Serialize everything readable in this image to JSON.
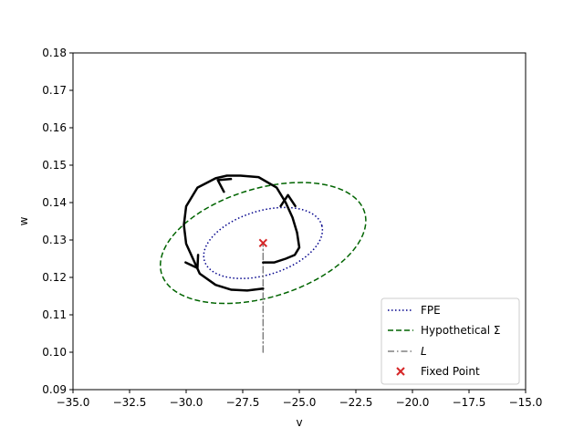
{
  "chart_data": {
    "type": "line",
    "xlabel": "v",
    "ylabel": "w",
    "xlim": [
      -35.0,
      -15.0
    ],
    "ylim": [
      0.09,
      0.18
    ],
    "x_ticks": [
      "−35.0",
      "−32.5",
      "−30.0",
      "−27.5",
      "−25.0",
      "−22.5",
      "−20.0",
      "−17.5",
      "−15.0"
    ],
    "y_ticks": [
      "0.09",
      "0.10",
      "0.11",
      "0.12",
      "0.13",
      "0.14",
      "0.15",
      "0.16",
      "0.17",
      "0.18"
    ],
    "grid": false,
    "legend_position": "lower-right",
    "series": [
      {
        "name": "FPE",
        "kind": "ellipse",
        "style": "dotted",
        "color": "#00008b",
        "center": [
          -26.6,
          0.1292
        ],
        "semi_axes_points": [
          [
            -24.0,
            0.1338
          ],
          [
            -26.95,
            0.1375
          ]
        ]
      },
      {
        "name": "Hypothetical Σ",
        "kind": "ellipse",
        "style": "dashed",
        "color": "#006400",
        "center": [
          -26.6,
          0.1292
        ],
        "semi_axes_points": [
          [
            -22.1,
            0.1371
          ],
          [
            -27.2,
            0.1433
          ]
        ]
      },
      {
        "name": "L",
        "kind": "line",
        "style": "dashdot",
        "color": "#808080",
        "x": [
          -26.6,
          -26.6
        ],
        "y": [
          0.1,
          0.1292
        ]
      },
      {
        "name": "Fixed Point",
        "kind": "scatter",
        "marker": "x",
        "color": "#d62728",
        "x": [
          -26.6
        ],
        "y": [
          0.1292
        ]
      },
      {
        "name": "",
        "kind": "trajectory",
        "style": "solid",
        "color": "#000000",
        "x": [
          -26.6,
          -26.1,
          -25.6,
          -25.2,
          -25.0,
          -25.1,
          -25.3,
          -25.6,
          -26.0,
          -26.8,
          -27.6,
          -28.2,
          -28.7,
          -29.5,
          -30.0,
          -30.1,
          -30.0,
          -29.7,
          -29.4,
          -28.7,
          -28.0,
          -27.3,
          -26.6
        ],
        "y": [
          0.124,
          0.124,
          0.125,
          0.126,
          0.128,
          0.132,
          0.136,
          0.14,
          0.144,
          0.1468,
          0.1472,
          0.1472,
          0.1465,
          0.144,
          0.139,
          0.134,
          0.129,
          0.125,
          0.121,
          0.118,
          0.1167,
          0.1165,
          0.117
        ]
      }
    ],
    "arrows": [
      {
        "at": [
          -25.5,
          0.142
        ],
        "dir": [
          0.0,
          1.0
        ]
      },
      {
        "at": [
          -28.6,
          0.146
        ],
        "dir": [
          -1.0,
          0.55
        ]
      },
      {
        "at": [
          -29.5,
          0.1225
        ],
        "dir": [
          0.6,
          -1.0
        ]
      }
    ]
  }
}
